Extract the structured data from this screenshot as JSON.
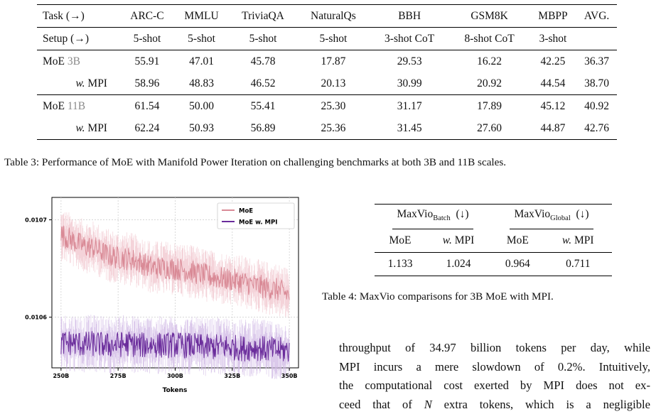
{
  "table3": {
    "header": [
      "Task (→)",
      "ARC-C",
      "MMLU",
      "TriviaQA",
      "NaturalQs",
      "BBH",
      "GSM8K",
      "MBPP",
      "AVG."
    ],
    "setup": [
      "Setup (→)",
      "5-shot",
      "5-shot",
      "5-shot",
      "5-shot",
      "3-shot CoT",
      "8-shot CoT",
      "3-shot",
      ""
    ],
    "rows": [
      {
        "model": "MoE",
        "size": "3B",
        "values": [
          "55.91",
          "47.01",
          "45.78",
          "17.87",
          "29.53",
          "16.22",
          "42.25",
          "36.37"
        ]
      },
      {
        "prefix": "w.",
        "method": "MPI",
        "values": [
          "58.96",
          "48.83",
          "46.52",
          "20.13",
          "30.99",
          "20.92",
          "44.54",
          "38.70"
        ]
      },
      {
        "model": "MoE",
        "size": "11B",
        "values": [
          "61.54",
          "50.00",
          "55.41",
          "25.30",
          "31.17",
          "17.89",
          "45.12",
          "40.92"
        ]
      },
      {
        "prefix": "w.",
        "method": "MPI",
        "values": [
          "62.24",
          "50.93",
          "56.89",
          "25.36",
          "31.45",
          "27.60",
          "44.87",
          "42.76"
        ]
      }
    ],
    "caption": "Table 3: Performance of MoE with Manifold Power Iteration on challenging benchmarks at both 3B and 11B scales."
  },
  "chart_data": {
    "type": "line",
    "title": "",
    "xlabel": "Tokens",
    "ylabel": "",
    "x_range": [
      250,
      350
    ],
    "x_unit": "B",
    "xticks": [
      "250B",
      "275B",
      "300B",
      "325B",
      "350B"
    ],
    "xtick_values": [
      250,
      275,
      300,
      325,
      350
    ],
    "ylim": [
      0.010548,
      0.010723
    ],
    "yticks": [
      "0.0106",
      "0.0107"
    ],
    "ytick_values": [
      0.0106,
      0.0107
    ],
    "grid": true,
    "legend_position": "top-right",
    "series": [
      {
        "name": "MoE",
        "color": "#d98a96",
        "band_color": "#f1c8cf",
        "x": [
          250,
          255,
          260,
          265,
          270,
          275,
          280,
          285,
          290,
          295,
          300,
          305,
          310,
          315,
          320,
          325,
          330,
          335,
          340,
          345,
          350
        ],
        "values": [
          0.010685,
          0.010679,
          0.010673,
          0.010671,
          0.010664,
          0.010661,
          0.01066,
          0.010656,
          0.010651,
          0.010651,
          0.01065,
          0.010648,
          0.010645,
          0.010642,
          0.01064,
          0.010638,
          0.010636,
          0.010633,
          0.01063,
          0.010628,
          0.010623
        ]
      },
      {
        "name": "MoE w. MPI",
        "color": "#6a2c9b",
        "band_color": "#d2bbe6",
        "x": [
          250,
          255,
          260,
          265,
          270,
          275,
          280,
          285,
          290,
          295,
          300,
          305,
          310,
          315,
          320,
          325,
          330,
          335,
          340,
          345,
          350
        ],
        "values": [
          0.010573,
          0.010574,
          0.010572,
          0.010573,
          0.010571,
          0.010572,
          0.010573,
          0.010571,
          0.010572,
          0.010571,
          0.010572,
          0.010571,
          0.01057,
          0.010569,
          0.01057,
          0.010569,
          0.010568,
          0.010569,
          0.010567,
          0.010566,
          0.010566
        ]
      }
    ]
  },
  "table4": {
    "metric": "MaxVio",
    "groups": [
      {
        "label": "MaxVio",
        "sub": "Batch",
        "arrow": "(↓)"
      },
      {
        "label": "MaxVio",
        "sub": "Global",
        "arrow": "(↓)"
      }
    ],
    "cols": [
      "MoE",
      "w.",
      "MPI",
      "MoE",
      "w.",
      "MPI"
    ],
    "values": [
      "1.133",
      "1.024",
      "0.964",
      "0.711"
    ],
    "caption_pre": "Table 4: ",
    "caption_metric": "MaxVio",
    "caption_post": " comparisons for 3B MoE with MPI."
  },
  "paragraph": {
    "lines": [
      "throughput of 34.97 billion tokens per day, while",
      "MPI incurs a mere slowdown of 0.2%. Intuitively,",
      "the computational cost exerted by MPI does not ex-"
    ],
    "last_pre": "ceed that of ",
    "last_var": "N",
    "last_post": " extra tokens, which is a negligible"
  }
}
